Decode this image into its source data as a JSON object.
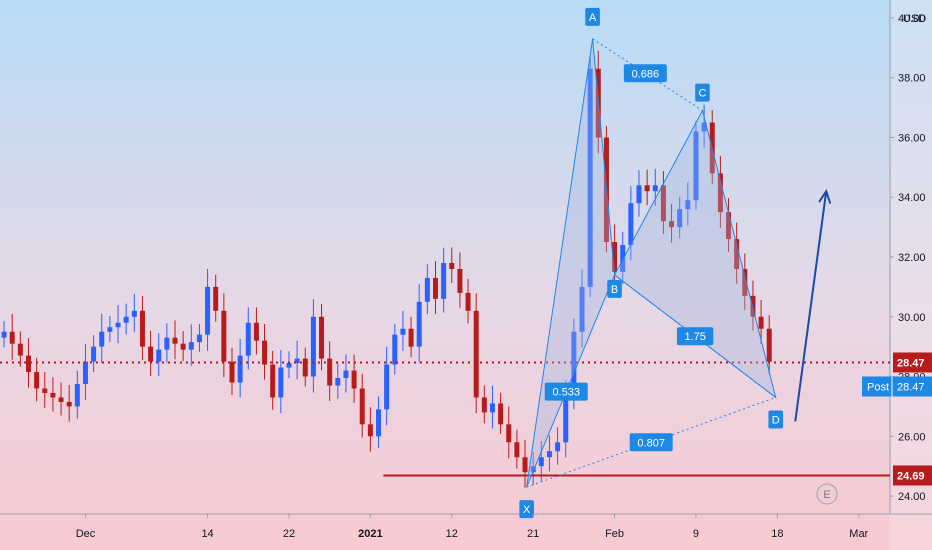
{
  "chart_data": {
    "type": "candlestick",
    "currency": "USD",
    "ylim": [
      23.4,
      40.6
    ],
    "y_ticks": [
      "24.00",
      "26.00",
      "28.00",
      "30.00",
      "32.00",
      "34.00",
      "36.00",
      "38.00",
      "40.00"
    ],
    "x_ticks": [
      {
        "label": "Dec",
        "bar": 10
      },
      {
        "label": "14",
        "bar": 25
      },
      {
        "label": "22",
        "bar": 35
      },
      {
        "label": "2021",
        "bar": 45,
        "bold": true
      },
      {
        "label": "12",
        "bar": 55
      },
      {
        "label": "21",
        "bar": 65
      },
      {
        "label": "Feb",
        "bar": 75
      },
      {
        "label": "9",
        "bar": 85
      },
      {
        "label": "18",
        "bar": 95
      },
      {
        "label": "Mar",
        "bar": 105
      }
    ],
    "price_data": [
      {
        "bar": 0,
        "price": 29.5
      },
      {
        "bar": 2,
        "price": 28.7
      },
      {
        "bar": 4,
        "price": 27.6
      },
      {
        "bar": 6,
        "price": 27.3
      },
      {
        "bar": 8,
        "price": 27.0
      },
      {
        "bar": 10,
        "price": 28.5
      },
      {
        "bar": 12,
        "price": 29.5
      },
      {
        "bar": 14,
        "price": 29.8
      },
      {
        "bar": 16,
        "price": 30.2
      },
      {
        "bar": 17,
        "price": 29.0
      },
      {
        "bar": 18,
        "price": 28.5
      },
      {
        "bar": 20,
        "price": 29.3
      },
      {
        "bar": 22,
        "price": 28.9
      },
      {
        "bar": 24,
        "price": 29.4
      },
      {
        "bar": 25,
        "price": 31.0
      },
      {
        "bar": 26,
        "price": 30.2
      },
      {
        "bar": 27,
        "price": 28.5
      },
      {
        "bar": 28,
        "price": 27.8
      },
      {
        "bar": 29,
        "price": 28.7
      },
      {
        "bar": 30,
        "price": 29.8
      },
      {
        "bar": 31,
        "price": 29.2
      },
      {
        "bar": 32,
        "price": 28.4
      },
      {
        "bar": 33,
        "price": 27.3
      },
      {
        "bar": 34,
        "price": 28.3
      },
      {
        "bar": 36,
        "price": 28.6
      },
      {
        "bar": 37,
        "price": 28.0
      },
      {
        "bar": 38,
        "price": 30.0
      },
      {
        "bar": 39,
        "price": 28.6
      },
      {
        "bar": 40,
        "price": 27.7
      },
      {
        "bar": 42,
        "price": 28.2
      },
      {
        "bar": 43,
        "price": 27.6
      },
      {
        "bar": 44,
        "price": 26.4
      },
      {
        "bar": 45,
        "price": 26.0
      },
      {
        "bar": 46,
        "price": 26.9
      },
      {
        "bar": 47,
        "price": 28.4
      },
      {
        "bar": 48,
        "price": 29.4
      },
      {
        "bar": 49,
        "price": 29.6
      },
      {
        "bar": 50,
        "price": 29.0
      },
      {
        "bar": 51,
        "price": 30.5
      },
      {
        "bar": 52,
        "price": 31.3
      },
      {
        "bar": 53,
        "price": 30.6
      },
      {
        "bar": 54,
        "price": 31.8
      },
      {
        "bar": 55,
        "price": 31.6
      },
      {
        "bar": 56,
        "price": 30.8
      },
      {
        "bar": 57,
        "price": 30.2
      },
      {
        "bar": 58,
        "price": 27.3
      },
      {
        "bar": 59,
        "price": 26.8
      },
      {
        "bar": 60,
        "price": 27.1
      },
      {
        "bar": 61,
        "price": 26.4
      },
      {
        "bar": 62,
        "price": 25.8
      },
      {
        "bar": 63,
        "price": 25.3
      },
      {
        "bar": 64,
        "price": 24.8
      },
      {
        "bar": 65,
        "price": 25.0
      },
      {
        "bar": 66,
        "price": 25.3
      },
      {
        "bar": 67,
        "price": 25.5
      },
      {
        "bar": 68,
        "price": 25.8
      },
      {
        "bar": 69,
        "price": 27.3
      },
      {
        "bar": 70,
        "price": 29.5
      },
      {
        "bar": 71,
        "price": 31.0
      },
      {
        "bar": 72,
        "price": 38.3
      },
      {
        "bar": 73,
        "price": 36.0
      },
      {
        "bar": 74,
        "price": 32.5
      },
      {
        "bar": 75,
        "price": 31.5
      },
      {
        "bar": 76,
        "price": 32.4
      },
      {
        "bar": 77,
        "price": 33.8
      },
      {
        "bar": 78,
        "price": 34.4
      },
      {
        "bar": 79,
        "price": 34.2
      },
      {
        "bar": 80,
        "price": 34.4
      },
      {
        "bar": 81,
        "price": 33.2
      },
      {
        "bar": 82,
        "price": 33.0
      },
      {
        "bar": 83,
        "price": 33.6
      },
      {
        "bar": 84,
        "price": 33.9
      },
      {
        "bar": 85,
        "price": 36.2
      },
      {
        "bar": 86,
        "price": 36.5
      },
      {
        "bar": 87,
        "price": 34.8
      },
      {
        "bar": 88,
        "price": 33.5
      },
      {
        "bar": 89,
        "price": 32.6
      },
      {
        "bar": 90,
        "price": 31.6
      },
      {
        "bar": 91,
        "price": 30.7
      },
      {
        "bar": 92,
        "price": 30.0
      },
      {
        "bar": 93,
        "price": 29.6
      },
      {
        "bar": 94,
        "price": 28.5
      }
    ],
    "harmonic_pattern": {
      "points": [
        {
          "label": "X",
          "bar": 64.2,
          "price": 24.3
        },
        {
          "label": "A",
          "bar": 72.3,
          "price": 39.3
        },
        {
          "label": "B",
          "bar": 75.0,
          "price": 31.4
        },
        {
          "label": "C",
          "bar": 85.8,
          "price": 36.9
        },
        {
          "label": "D",
          "bar": 94.8,
          "price": 27.3
        }
      ],
      "ratios": {
        "XAB": "0.533",
        "XAD": "0.807",
        "ABC": "0.686",
        "BCD": "1.75"
      }
    },
    "projection_arrow": {
      "from": {
        "bar": 97.2,
        "price": 26.5
      },
      "to": {
        "bar": 101.0,
        "price": 34.2
      }
    },
    "support_level": {
      "price": 24.69,
      "label": "24.69",
      "start_bar": 46.6
    },
    "last_price": {
      "price": 28.47,
      "label": "28.47",
      "post_label": "Post",
      "post_value": "28.47"
    },
    "earnings_marker": "E",
    "colors": {
      "up": "#2962ff",
      "down": "#b71c1c",
      "pattern": "#1e88e5",
      "pattern_fill": "#9fb4e0",
      "support": "#b71c1c",
      "last_price": "#b71c1c",
      "arrow": "#1a4ba8"
    }
  }
}
